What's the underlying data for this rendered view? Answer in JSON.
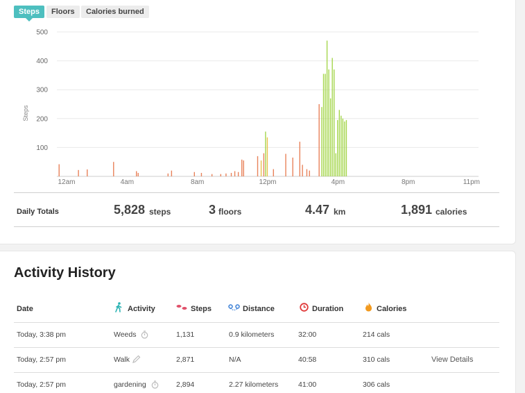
{
  "tabs": [
    {
      "label": "Steps",
      "active": true
    },
    {
      "label": "Floors",
      "active": false
    },
    {
      "label": "Calories burned",
      "active": false
    }
  ],
  "chart_data": {
    "type": "bar",
    "ylabel": "Steps",
    "ylim": [
      0,
      500
    ],
    "y_ticks": [
      "500",
      "400",
      "300",
      "200",
      "100"
    ],
    "x_ticks": [
      "12am",
      "4am",
      "8am",
      "12pm",
      "4pm",
      "8pm",
      "11pm"
    ],
    "x_unit": "hour of day (0–23)",
    "colors": {
      "low": "#e8825a",
      "mid": "#e8c24a",
      "high": "#a5d64c"
    },
    "bars": [
      {
        "x": 0.1,
        "y": 42,
        "c": "low"
      },
      {
        "x": 1.2,
        "y": 22,
        "c": "low"
      },
      {
        "x": 1.7,
        "y": 24,
        "c": "low"
      },
      {
        "x": 3.2,
        "y": 50,
        "c": "low"
      },
      {
        "x": 4.5,
        "y": 18,
        "c": "low"
      },
      {
        "x": 4.6,
        "y": 12,
        "c": "low"
      },
      {
        "x": 6.3,
        "y": 10,
        "c": "low"
      },
      {
        "x": 6.5,
        "y": 20,
        "c": "low"
      },
      {
        "x": 7.8,
        "y": 15,
        "c": "low"
      },
      {
        "x": 8.2,
        "y": 12,
        "c": "low"
      },
      {
        "x": 8.8,
        "y": 8,
        "c": "low"
      },
      {
        "x": 9.3,
        "y": 8,
        "c": "low"
      },
      {
        "x": 9.6,
        "y": 10,
        "c": "low"
      },
      {
        "x": 9.9,
        "y": 12,
        "c": "low"
      },
      {
        "x": 10.1,
        "y": 18,
        "c": "low"
      },
      {
        "x": 10.3,
        "y": 15,
        "c": "low"
      },
      {
        "x": 10.5,
        "y": 58,
        "c": "low"
      },
      {
        "x": 10.6,
        "y": 55,
        "c": "low"
      },
      {
        "x": 11.4,
        "y": 70,
        "c": "low"
      },
      {
        "x": 11.6,
        "y": 55,
        "c": "mid"
      },
      {
        "x": 11.75,
        "y": 80,
        "c": "low"
      },
      {
        "x": 11.85,
        "y": 155,
        "c": "high"
      },
      {
        "x": 11.95,
        "y": 135,
        "c": "mid"
      },
      {
        "x": 12.3,
        "y": 25,
        "c": "low"
      },
      {
        "x": 13.0,
        "y": 78,
        "c": "low"
      },
      {
        "x": 13.4,
        "y": 65,
        "c": "low"
      },
      {
        "x": 13.8,
        "y": 120,
        "c": "low"
      },
      {
        "x": 13.95,
        "y": 40,
        "c": "low"
      },
      {
        "x": 14.2,
        "y": 25,
        "c": "low"
      },
      {
        "x": 14.35,
        "y": 20,
        "c": "low"
      },
      {
        "x": 14.9,
        "y": 250,
        "c": "low"
      },
      {
        "x": 15.05,
        "y": 240,
        "c": "high"
      },
      {
        "x": 15.15,
        "y": 355,
        "c": "high"
      },
      {
        "x": 15.25,
        "y": 355,
        "c": "high"
      },
      {
        "x": 15.35,
        "y": 470,
        "c": "high"
      },
      {
        "x": 15.45,
        "y": 370,
        "c": "high"
      },
      {
        "x": 15.55,
        "y": 270,
        "c": "high"
      },
      {
        "x": 15.65,
        "y": 410,
        "c": "high"
      },
      {
        "x": 15.75,
        "y": 370,
        "c": "high"
      },
      {
        "x": 15.85,
        "y": 80,
        "c": "high"
      },
      {
        "x": 15.95,
        "y": 195,
        "c": "high"
      },
      {
        "x": 16.05,
        "y": 230,
        "c": "high"
      },
      {
        "x": 16.15,
        "y": 210,
        "c": "high"
      },
      {
        "x": 16.25,
        "y": 200,
        "c": "high"
      },
      {
        "x": 16.35,
        "y": 190,
        "c": "high"
      },
      {
        "x": 16.45,
        "y": 195,
        "c": "high"
      }
    ]
  },
  "daily_totals": {
    "label": "Daily Totals",
    "steps": {
      "value": "5,828",
      "unit": "steps"
    },
    "floors": {
      "value": "3",
      "unit": "floors"
    },
    "distance": {
      "value": "4.47",
      "unit": "km"
    },
    "calories": {
      "value": "1,891",
      "unit": "calories"
    }
  },
  "activity_history": {
    "title": "Activity History",
    "columns": {
      "date": "Date",
      "activity": "Activity",
      "steps": "Steps",
      "distance": "Distance",
      "duration": "Duration",
      "calories": "Calories"
    },
    "rows": [
      {
        "date": "Today, 3:38 pm",
        "activity": "Weeds",
        "icon": "stopwatch-icon",
        "steps": "1,131",
        "distance": "0.9 kilometers",
        "duration": "32:00",
        "calories": "214 cals",
        "link": ""
      },
      {
        "date": "Today, 2:57 pm",
        "activity": "Walk",
        "icon": "pencil-icon",
        "steps": "2,871",
        "distance": "N/A",
        "duration": "40:58",
        "calories": "310 cals",
        "link": "View Details"
      },
      {
        "date": "Today, 2:57 pm",
        "activity": "gardening",
        "icon": "stopwatch-icon",
        "steps": "2,894",
        "distance": "2.27 kilometers",
        "duration": "41:00",
        "calories": "306 cals",
        "link": ""
      }
    ]
  },
  "accent_color": "#4dbfbf"
}
